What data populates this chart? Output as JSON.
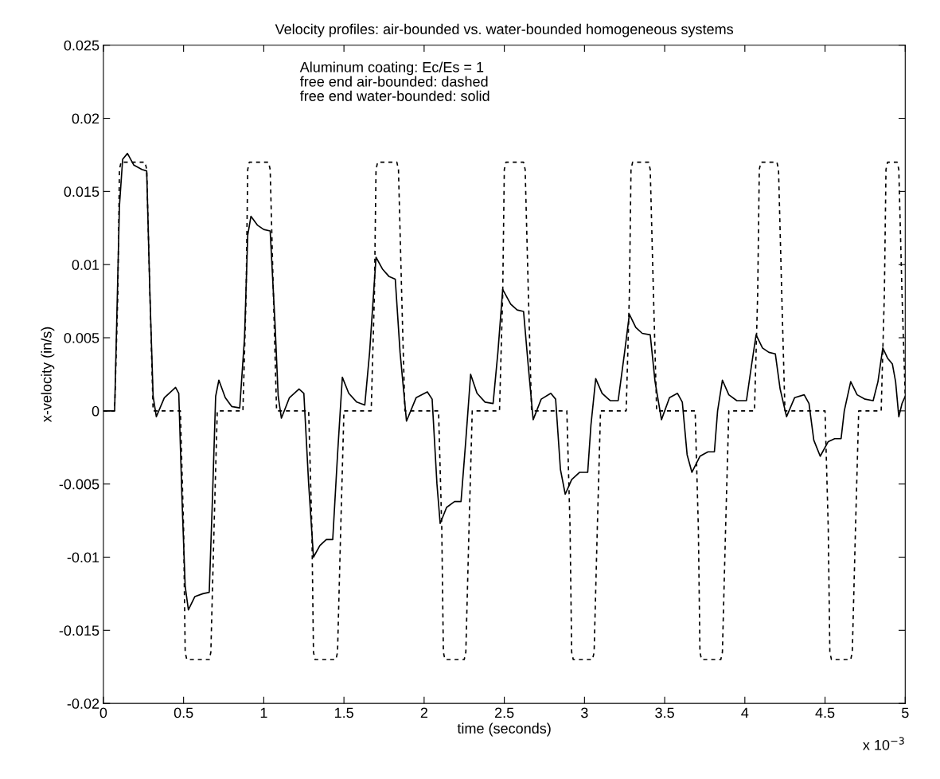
{
  "chart_data": {
    "type": "line",
    "title": "Velocity profiles: air-bounded vs. water-bounded homogeneous systems",
    "xlabel": "time (seconds)",
    "ylabel": "x-velocity (in/s)",
    "annotations": [
      "Aluminum coating: Ec/Es = 1\nfree end air-bounded: dashed\nfree end water-bounded: solid",
      "x 10$^{−3}$"
    ],
    "xlim": [
      0,
      5
    ],
    "xticks": [
      0,
      0.5,
      1,
      1.5,
      2,
      2.5,
      3,
      3.5,
      4,
      4.5,
      5
    ],
    "ylim": [
      -0.02,
      0.025
    ],
    "yticks": [
      -0.02,
      -0.015,
      -0.01,
      -0.005,
      0,
      0.005,
      0.01,
      0.015,
      0.02,
      0.025
    ],
    "grid": false,
    "marker": "none",
    "series": [
      {
        "color": "#000000",
        "line_style": "dashed",
        "x": [
          0,
          0.07,
          0.09,
          0.1,
          0.11,
          0.26,
          0.27,
          0.29,
          0.31,
          0.48,
          0.5,
          0.51,
          0.52,
          0.66,
          0.67,
          0.69,
          0.71,
          0.87,
          0.89,
          0.9,
          0.91,
          1.03,
          1.04,
          1.06,
          1.08,
          1.28,
          1.3,
          1.31,
          1.32,
          1.45,
          1.46,
          1.48,
          1.5,
          1.67,
          1.69,
          1.7,
          1.71,
          1.83,
          1.84,
          1.86,
          1.88,
          2.09,
          2.11,
          2.12,
          2.13,
          2.25,
          2.26,
          2.28,
          2.3,
          2.47,
          2.49,
          2.5,
          2.51,
          2.62,
          2.63,
          2.65,
          2.67,
          2.89,
          2.91,
          2.92,
          2.93,
          3.05,
          3.06,
          3.08,
          3.1,
          3.26,
          3.28,
          3.29,
          3.3,
          3.4,
          3.41,
          3.43,
          3.45,
          3.69,
          3.71,
          3.72,
          3.73,
          3.85,
          3.86,
          3.88,
          3.9,
          4.06,
          4.08,
          4.09,
          4.1,
          4.2,
          4.21,
          4.23,
          4.25,
          4.5,
          4.52,
          4.53,
          4.54,
          4.66,
          4.67,
          4.69,
          4.71,
          4.85,
          4.87,
          4.88,
          4.89,
          4.95,
          4.96,
          4.98,
          5.0
        ],
        "values": [
          0,
          0,
          0.008,
          0.0165,
          0.017,
          0.017,
          0.0165,
          0.008,
          0,
          0,
          -0.008,
          -0.0165,
          -0.017,
          -0.017,
          -0.0165,
          -0.008,
          0,
          0,
          0.008,
          0.0165,
          0.017,
          0.017,
          0.0165,
          0.008,
          0,
          0,
          -0.008,
          -0.0165,
          -0.017,
          -0.017,
          -0.0165,
          -0.008,
          0,
          0,
          0.008,
          0.0165,
          0.017,
          0.017,
          0.0165,
          0.008,
          0,
          0,
          -0.008,
          -0.0165,
          -0.017,
          -0.017,
          -0.0165,
          -0.008,
          0,
          0,
          0.008,
          0.0165,
          0.017,
          0.017,
          0.0165,
          0.008,
          0,
          0,
          -0.008,
          -0.0165,
          -0.017,
          -0.017,
          -0.0165,
          -0.008,
          0,
          0,
          0.008,
          0.0165,
          0.017,
          0.017,
          0.0165,
          0.008,
          0,
          0,
          -0.008,
          -0.0165,
          -0.017,
          -0.017,
          -0.0165,
          -0.008,
          0,
          0,
          0.008,
          0.0165,
          0.017,
          0.017,
          0.0165,
          0.008,
          0,
          0,
          -0.008,
          -0.0165,
          -0.017,
          -0.017,
          -0.0165,
          -0.008,
          0,
          0,
          0.008,
          0.0165,
          0.017,
          0.017,
          0.0165,
          0.008,
          0.001
        ]
      },
      {
        "color": "#000000",
        "line_style": "solid",
        "x": [
          0,
          0.07,
          0.1,
          0.12,
          0.15,
          0.19,
          0.24,
          0.27,
          0.29,
          0.31,
          0.33,
          0.38,
          0.45,
          0.47,
          0.49,
          0.51,
          0.53,
          0.57,
          0.62,
          0.66,
          0.68,
          0.7,
          0.72,
          0.76,
          0.8,
          0.85,
          0.88,
          0.9,
          0.92,
          0.96,
          1.0,
          1.04,
          1.07,
          1.09,
          1.11,
          1.16,
          1.22,
          1.25,
          1.28,
          1.31,
          1.35,
          1.39,
          1.43,
          1.46,
          1.49,
          1.53,
          1.58,
          1.63,
          1.66,
          1.7,
          1.74,
          1.78,
          1.82,
          1.85,
          1.89,
          1.95,
          2.02,
          2.05,
          2.08,
          2.1,
          2.14,
          2.19,
          2.23,
          2.26,
          2.29,
          2.33,
          2.38,
          2.43,
          2.46,
          2.49,
          2.54,
          2.58,
          2.62,
          2.65,
          2.68,
          2.73,
          2.79,
          2.82,
          2.85,
          2.88,
          2.92,
          2.97,
          3.02,
          3.04,
          3.07,
          3.11,
          3.16,
          3.21,
          3.25,
          3.28,
          3.32,
          3.36,
          3.41,
          3.44,
          3.48,
          3.53,
          3.58,
          3.61,
          3.64,
          3.67,
          3.72,
          3.77,
          3.81,
          3.83,
          3.86,
          3.9,
          3.95,
          4.01,
          4.04,
          4.07,
          4.11,
          4.15,
          4.19,
          4.22,
          4.26,
          4.31,
          4.37,
          4.4,
          4.43,
          4.47,
          4.52,
          4.56,
          4.6,
          4.62,
          4.66,
          4.7,
          4.75,
          4.8,
          4.83,
          4.86,
          4.89,
          4.92,
          4.94,
          4.96,
          4.98,
          5.0
        ],
        "values": [
          0,
          0,
          0.014,
          0.0172,
          0.0176,
          0.0168,
          0.0165,
          0.0164,
          0.008,
          0.001,
          -0.0004,
          0.0009,
          0.0016,
          0.0012,
          -0.006,
          -0.012,
          -0.0136,
          -0.0127,
          -0.0125,
          -0.0124,
          -0.006,
          0.001,
          0.0021,
          0.0009,
          0.0003,
          0.0002,
          0.005,
          0.012,
          0.0133,
          0.0127,
          0.0124,
          0.0123,
          0.006,
          0.001,
          -0.0005,
          0.0009,
          0.0015,
          0.0012,
          -0.005,
          -0.01,
          -0.0092,
          -0.0088,
          -0.0088,
          -0.003,
          0.0023,
          0.0012,
          0.0006,
          0.0004,
          0.004,
          0.0105,
          0.0097,
          0.0092,
          0.009,
          0.004,
          -0.0007,
          0.0009,
          0.0013,
          0.0008,
          -0.005,
          -0.0077,
          -0.0066,
          -0.0062,
          -0.0062,
          -0.002,
          0.0025,
          0.0012,
          0.0006,
          0.0005,
          0.004,
          0.0083,
          0.0073,
          0.0069,
          0.0068,
          0.003,
          -0.0006,
          0.0008,
          0.0012,
          0.0008,
          -0.004,
          -0.0057,
          -0.0047,
          -0.0042,
          -0.0042,
          -0.001,
          0.0022,
          0.0012,
          0.0007,
          0.0007,
          0.004,
          0.0066,
          0.0057,
          0.0053,
          0.0052,
          0.002,
          -0.0006,
          0.0009,
          0.0012,
          0.0006,
          -0.003,
          -0.0042,
          -0.0031,
          -0.0028,
          -0.0028,
          0,
          0.0021,
          0.0011,
          0.0007,
          0.0007,
          0.003,
          0.0052,
          0.0043,
          0.004,
          0.0039,
          0.0015,
          -0.0004,
          0.0009,
          0.0011,
          0.0005,
          -0.002,
          -0.0031,
          -0.0021,
          -0.0019,
          -0.0019,
          0,
          0.002,
          0.0011,
          0.0008,
          0.0007,
          0.002,
          0.0043,
          0.0036,
          0.0032,
          0.002,
          -0.0004,
          0.0005,
          0.001
        ]
      }
    ]
  }
}
